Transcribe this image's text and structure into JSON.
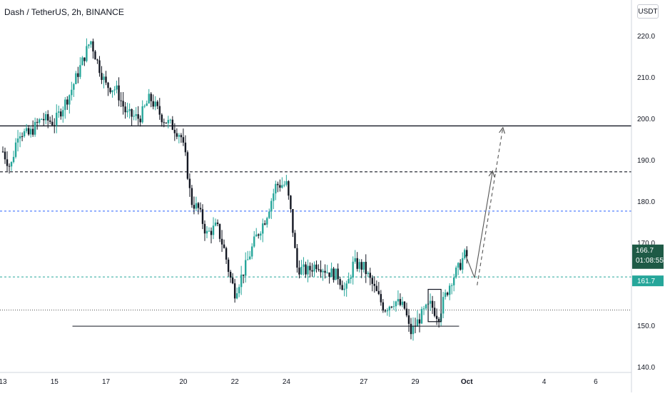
{
  "header": {
    "symbol": "Dash / TetherUS, 2h, BINANCE",
    "currency": "USDT"
  },
  "price_scale": {
    "current_price": "166.7",
    "countdown": "01:08:55",
    "level_tag": "161.7",
    "current_color": "#1e5a46",
    "level_color": "#26a69a"
  },
  "chart_data": {
    "type": "candlestick",
    "title": "Dash / TetherUS, 2h, BINANCE",
    "ylim": [
      138,
      225
    ],
    "y_ticks": [
      "220.0",
      "210.0",
      "200.0",
      "190.0",
      "180.0",
      "170.0",
      "150.0",
      "140.0"
    ],
    "x_ticks": [
      "13",
      "15",
      "17",
      "20",
      "22",
      "24",
      "27",
      "29",
      "Oct",
      "4",
      "6"
    ],
    "colors": {
      "up": "#26a69a",
      "down": "#131722"
    },
    "close_path": [
      [
        13,
        192
      ],
      [
        13.3,
        188
      ],
      [
        13.6,
        197
      ],
      [
        14,
        196
      ],
      [
        14.5,
        200
      ],
      [
        15,
        199
      ],
      [
        15.6,
        206
      ],
      [
        16.1,
        214
      ],
      [
        16.4,
        219
      ],
      [
        16.7,
        213
      ],
      [
        17,
        208
      ],
      [
        17.4,
        207
      ],
      [
        17.8,
        201
      ],
      [
        18.3,
        200
      ],
      [
        18.7,
        205
      ],
      [
        19.2,
        200
      ],
      [
        19.6,
        198
      ],
      [
        19.9,
        196
      ],
      [
        20.1,
        190
      ],
      [
        20.3,
        180
      ],
      [
        20.6,
        178
      ],
      [
        20.9,
        172
      ],
      [
        21.3,
        174
      ],
      [
        21.6,
        168
      ],
      [
        21.8,
        162
      ],
      [
        22.0,
        158
      ],
      [
        22.4,
        164
      ],
      [
        22.8,
        171
      ],
      [
        23.2,
        176
      ],
      [
        23.6,
        184
      ],
      [
        24.0,
        184
      ],
      [
        24.2,
        176
      ],
      [
        24.4,
        164
      ],
      [
        24.8,
        163
      ],
      [
        25.2,
        165
      ],
      [
        25.6,
        163
      ],
      [
        26.0,
        162
      ],
      [
        26.3,
        158
      ],
      [
        26.6,
        165
      ],
      [
        27.0,
        164
      ],
      [
        27.4,
        159
      ],
      [
        27.8,
        154
      ],
      [
        28.2,
        156
      ],
      [
        28.6,
        154
      ],
      [
        28.8,
        148
      ],
      [
        29.0,
        150
      ],
      [
        29.3,
        153
      ],
      [
        29.6,
        155
      ],
      [
        29.9,
        152
      ],
      [
        30.1,
        156
      ],
      [
        30.4,
        161
      ],
      [
        30.7,
        164
      ],
      [
        30.9,
        167
      ],
      [
        31.0,
        166.7
      ]
    ],
    "annotations": {
      "horizontal_levels": [
        {
          "price": 198.2,
          "style": "solid"
        },
        {
          "price": 187.1,
          "style": "dashed"
        },
        {
          "price": 177.6,
          "style": "dashed-blue"
        },
        {
          "price": 161.7,
          "style": "dashed-green"
        },
        {
          "price": 153.7,
          "style": "dotted"
        }
      ],
      "support_line": {
        "price": 149.8,
        "from_day": 15.7,
        "to_day": 30.7
      },
      "box": {
        "from_day": 29.5,
        "to_day": 30.0,
        "top": 158.7,
        "bottom": 150.9
      },
      "projections": [
        {
          "from": [
            31.3,
            161.5
          ],
          "to": [
            32.0,
            187.3
          ],
          "style": "solid-arrow"
        },
        {
          "from": [
            31.4,
            159.7
          ],
          "to": [
            32.4,
            197.8
          ],
          "style": "dashed-arrow"
        }
      ]
    }
  }
}
